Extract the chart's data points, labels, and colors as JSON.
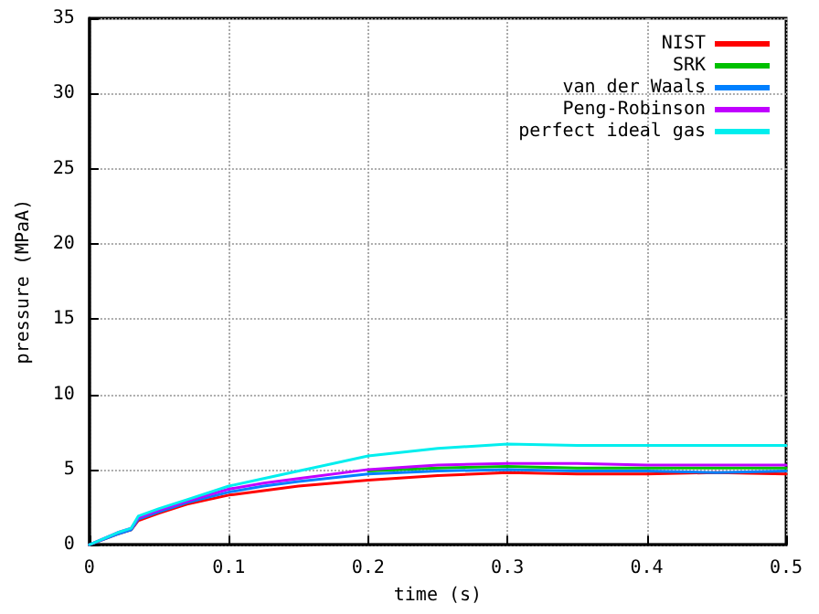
{
  "chart_data": {
    "type": "line",
    "xlabel": "time (s)",
    "ylabel": "pressure (MPaA)",
    "x": [
      0,
      0.02,
      0.03,
      0.035,
      0.05,
      0.07,
      0.1,
      0.125,
      0.15,
      0.2,
      0.25,
      0.3,
      0.35,
      0.4,
      0.45,
      0.5
    ],
    "series": [
      {
        "name": "NIST",
        "color": "#ff0000",
        "values": [
          0,
          0.7,
          1.0,
          1.6,
          2.1,
          2.7,
          3.3,
          3.6,
          3.9,
          4.3,
          4.6,
          4.8,
          4.7,
          4.7,
          4.8,
          4.7
        ]
      },
      {
        "name": "SRK",
        "color": "#00c000",
        "values": [
          null,
          null,
          null,
          null,
          null,
          null,
          null,
          null,
          null,
          4.9,
          5.1,
          5.2,
          5.1,
          5.1,
          5.1,
          5.1
        ]
      },
      {
        "name": "van der Waals",
        "color": "#0080ff",
        "values": [
          0,
          0.7,
          1.0,
          1.7,
          2.2,
          2.8,
          3.5,
          3.9,
          4.2,
          4.7,
          4.9,
          5.0,
          4.9,
          4.9,
          4.8,
          4.9
        ]
      },
      {
        "name": "Peng-Robinson",
        "color": "#c000ff",
        "values": [
          0,
          0.8,
          1.1,
          1.8,
          2.3,
          2.9,
          3.7,
          4.1,
          4.4,
          5.0,
          5.3,
          5.4,
          5.4,
          5.3,
          5.3,
          5.3
        ]
      },
      {
        "name": "perfect ideal gas",
        "color": "#00eeee",
        "values": [
          0,
          0.8,
          1.1,
          1.9,
          2.4,
          3.0,
          3.9,
          4.4,
          4.9,
          5.9,
          6.4,
          6.7,
          6.6,
          6.6,
          6.6,
          6.6
        ]
      }
    ],
    "xlim": [
      0,
      0.5
    ],
    "xticks": [
      0,
      0.1,
      0.2,
      0.3,
      0.4,
      0.5
    ],
    "ylim": [
      0,
      35
    ],
    "yticks": [
      0,
      5,
      10,
      15,
      20,
      25,
      30,
      35
    ],
    "grid": true,
    "legend": "top right",
    "marker": "none",
    "line_style": "solid"
  }
}
